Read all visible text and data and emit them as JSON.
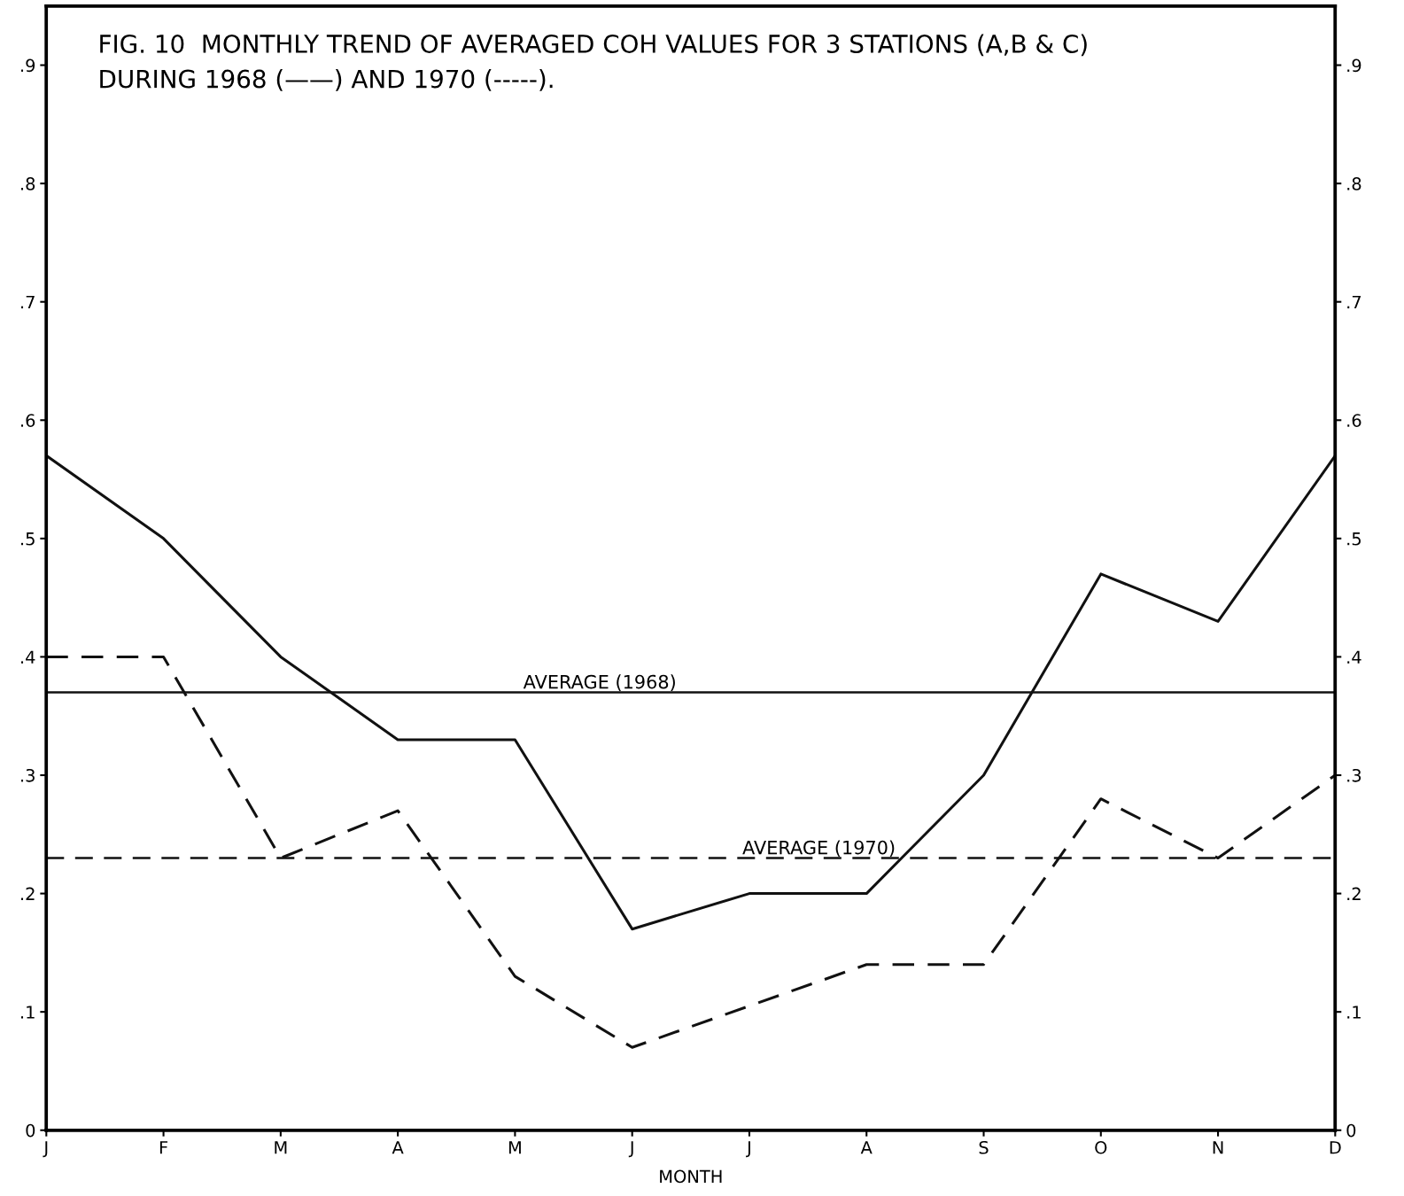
{
  "chart_data": {
    "type": "line",
    "title": "FIG. 10  MONTHLY TREND OF AVERAGED COH VALUES FOR 3 STATIONS (A,B & C)\nDURING 1968 (——) AND 1970 (-----).",
    "xlabel": "MONTH",
    "categories": [
      "J",
      "F",
      "M",
      "A",
      "M",
      "J",
      "J",
      "A",
      "S",
      "O",
      "N",
      "D"
    ],
    "series": [
      {
        "color": "#111111",
        "line_style": "solid",
        "values": [
          0.57,
          0.5,
          0.4,
          0.33,
          0.33,
          0.17,
          0.2,
          0.2,
          0.3,
          0.47,
          0.43,
          0.57
        ]
      },
      {
        "color": "#111111",
        "line_style": "dashed",
        "values": [
          0.4,
          0.4,
          0.23,
          0.27,
          0.13,
          0.07,
          0.105,
          0.14,
          0.14,
          0.28,
          0.23,
          0.3
        ]
      }
    ],
    "ylim": [
      0,
      0.95
    ],
    "yticks": [
      0,
      {
        "value": 0.1,
        "label": ".1"
      },
      {
        "value": 0.2,
        "label": ".2"
      },
      {
        "value": 0.3,
        "label": ".3"
      },
      {
        "value": 0.4,
        "label": ".4"
      },
      {
        "value": 0.5,
        "label": ".5"
      },
      {
        "value": 0.6,
        "label": ".6"
      },
      {
        "value": 0.7,
        "label": ".7"
      },
      {
        "value": 0.8,
        "label": ".8"
      },
      {
        "value": 0.9,
        "label": ".9"
      }
    ],
    "y2lim": [
      0,
      0.95
    ],
    "y2ticks": [
      0,
      {
        "value": 0.1,
        "label": ".1"
      },
      {
        "value": 0.2,
        "label": ".2"
      },
      {
        "value": 0.3,
        "label": ".3"
      },
      {
        "value": 0.4,
        "label": ".4"
      },
      {
        "value": 0.5,
        "label": ".5"
      },
      {
        "value": 0.6,
        "label": ".6"
      },
      {
        "value": 0.7,
        "label": ".7"
      },
      {
        "value": 0.8,
        "label": ".8"
      },
      {
        "value": 0.9,
        "label": ".9"
      }
    ],
    "ref_lines": [
      {
        "axis": "y",
        "value": 0.37,
        "label": "AVERAGE (1968)",
        "color": "#111111",
        "line_style": "solid"
      },
      {
        "axis": "y",
        "value": 0.23,
        "label": "AVERAGE (1970)",
        "color": "#111111",
        "line_style": "dashed"
      }
    ],
    "grid": false,
    "legend": false,
    "marker": "none"
  }
}
